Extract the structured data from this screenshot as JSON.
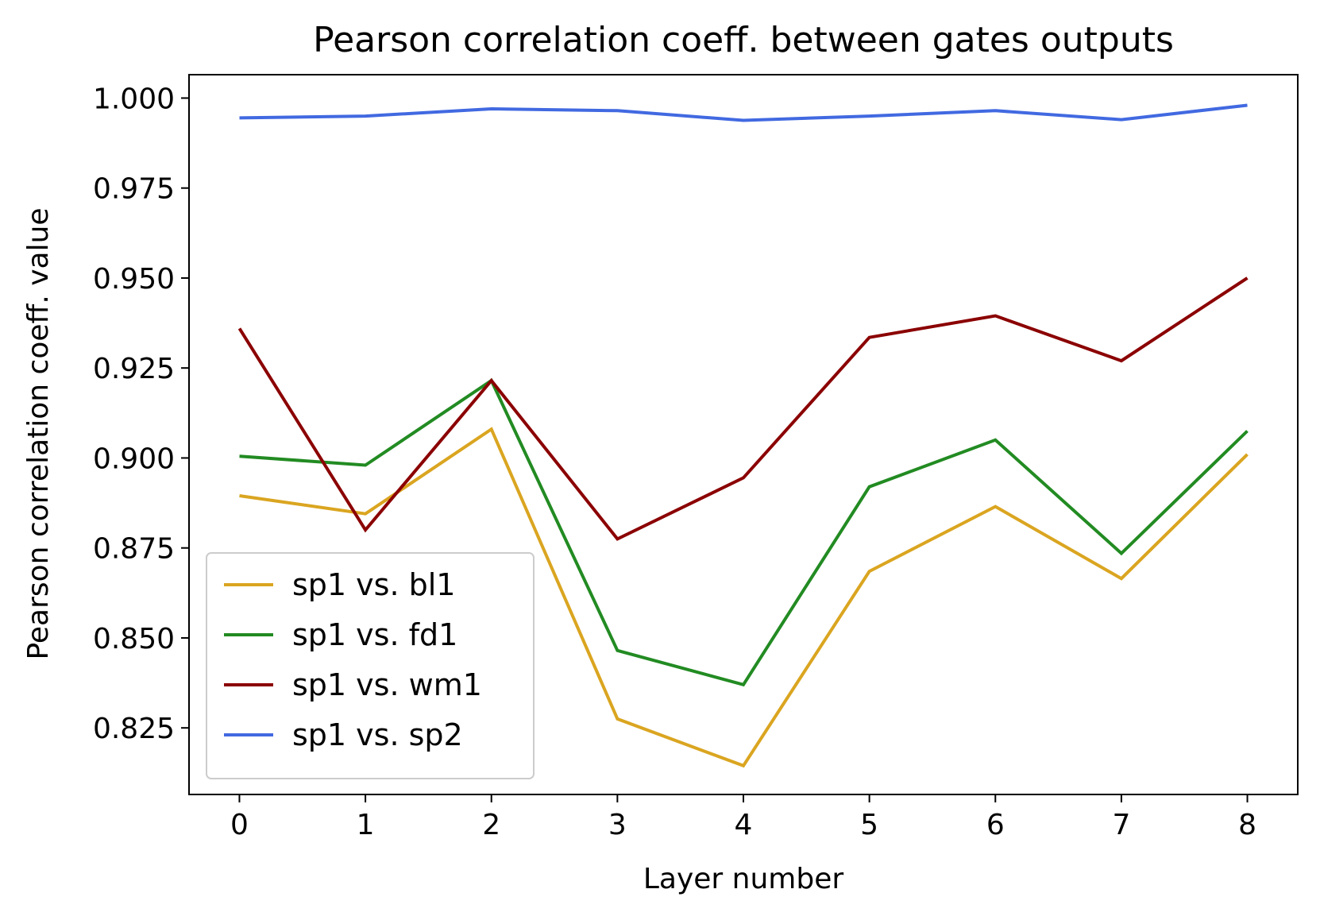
{
  "chart_data": {
    "type": "line",
    "title": "Pearson correlation coeff. between gates outputs",
    "xlabel": "Layer number",
    "ylabel": "Pearson correlation coeff. value",
    "x": [
      0,
      1,
      2,
      3,
      4,
      5,
      6,
      7,
      8
    ],
    "xticks": [
      "0",
      "1",
      "2",
      "3",
      "4",
      "5",
      "6",
      "7",
      "8"
    ],
    "yticks": [
      "0.825",
      "0.850",
      "0.875",
      "0.900",
      "0.925",
      "0.950",
      "0.975",
      "1.000"
    ],
    "xlim": [
      -0.4,
      8.4
    ],
    "ylim": [
      0.8065,
      1.0065
    ],
    "grid": false,
    "legend_position": "lower-left",
    "series": [
      {
        "name": "sp1 vs. bl1",
        "color": "#daa520",
        "values": [
          0.8895,
          0.8845,
          0.908,
          0.8275,
          0.8145,
          0.8685,
          0.8865,
          0.8665,
          0.901
        ]
      },
      {
        "name": "sp1 vs. fd1",
        "color": "#228b22",
        "values": [
          0.9005,
          0.898,
          0.9215,
          0.8465,
          0.837,
          0.892,
          0.905,
          0.8735,
          0.9075
        ]
      },
      {
        "name": "sp1 vs. wm1",
        "color": "#8b0000",
        "values": [
          0.936,
          0.88,
          0.9215,
          0.8775,
          0.8945,
          0.9335,
          0.9395,
          0.927,
          0.95
        ]
      },
      {
        "name": "sp1 vs. sp2",
        "color": "#4169e1",
        "values": [
          0.9945,
          0.995,
          0.997,
          0.9965,
          0.9938,
          0.995,
          0.9965,
          0.994,
          0.998
        ]
      }
    ]
  }
}
